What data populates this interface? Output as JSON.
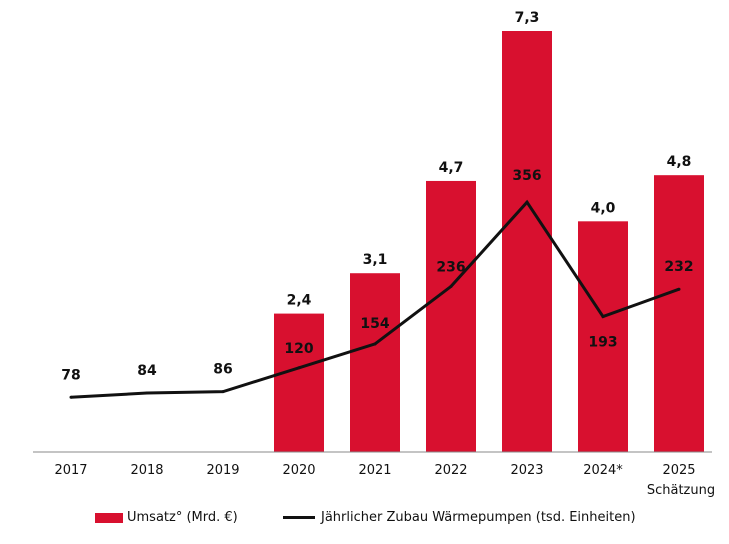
{
  "chart_data": {
    "type": "bar+line",
    "categories": [
      "2017",
      "2018",
      "2019",
      "2020",
      "2021",
      "2022",
      "2023",
      "2024*",
      "2025"
    ],
    "category_sublabels": [
      "",
      "",
      "",
      "",
      "",
      "",
      "",
      "",
      "Schätzung"
    ],
    "series": [
      {
        "name": "Umsatz° (Mrd. €)",
        "type": "bar",
        "values": [
          null,
          null,
          null,
          2.4,
          3.1,
          4.7,
          7.3,
          4.0,
          4.8
        ],
        "labels": [
          "",
          "",
          "",
          "2,4",
          "3,1",
          "4,7",
          "7,3",
          "4,0",
          "4,8"
        ]
      },
      {
        "name": "Jährlicher Zubau Wärmepumpen (tsd. Einheiten)",
        "type": "line",
        "values": [
          78,
          84,
          86,
          120,
          154,
          236,
          356,
          193,
          232
        ],
        "labels": [
          "78",
          "84",
          "86",
          "120",
          "154",
          "236",
          "356",
          "193",
          "232"
        ]
      }
    ],
    "colors": {
      "bar": "#d8102f",
      "line": "#111111",
      "axis": "#888888"
    },
    "bar_ylim": [
      0,
      7.3
    ],
    "line_ylim": [
      0,
      600
    ],
    "grid": false,
    "legend_position": "bottom"
  }
}
